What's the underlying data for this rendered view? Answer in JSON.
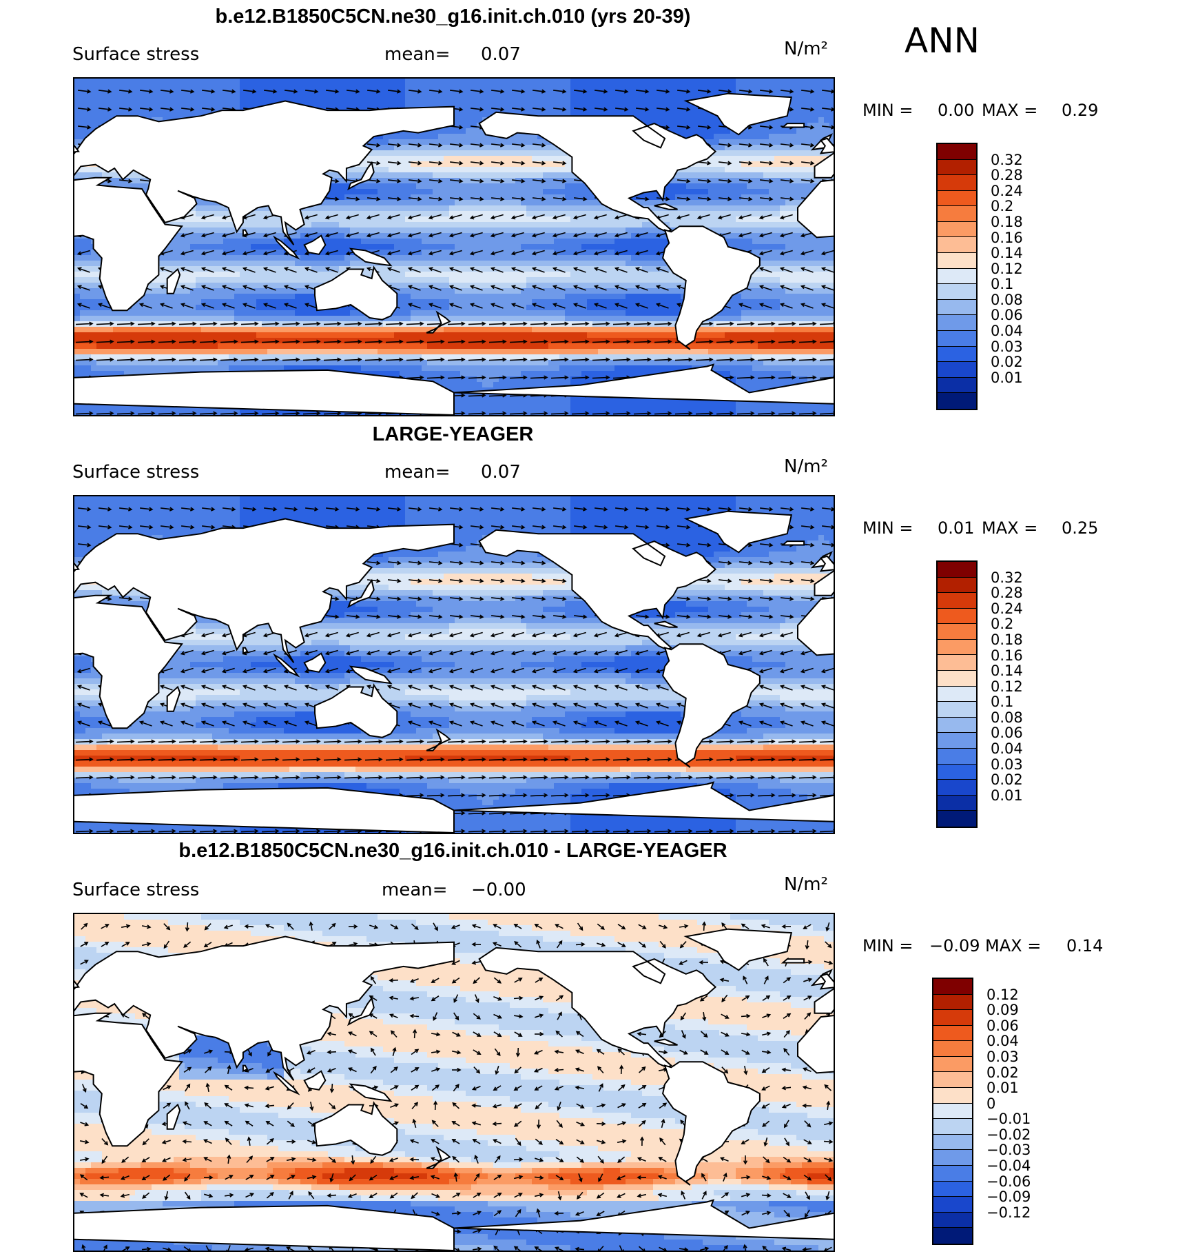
{
  "season": "ANN",
  "panels": [
    {
      "title": "b.e12.B1850C5CN.ne30_g16.init.ch.010 (yrs 20-39)",
      "variable": "Surface stress",
      "mean_label": "mean=",
      "mean_value": "0.07",
      "units": "N/m²",
      "min_label": "MIN =",
      "min_value": "0.00",
      "max_label": "MAX =",
      "max_value": "0.29",
      "colorbar": {
        "ticks": [
          "0.32",
          "0.28",
          "0.24",
          "0.2",
          "0.18",
          "0.16",
          "0.14",
          "0.12",
          "0.1",
          "0.08",
          "0.06",
          "0.04",
          "0.03",
          "0.02",
          "0.01"
        ],
        "colors": [
          "#7f0000",
          "#b22000",
          "#d63a0a",
          "#ee5a1e",
          "#f67c3e",
          "#fb9b64",
          "#fdbd95",
          "#fde0c8",
          "#dde9f7",
          "#bcd4f2",
          "#97b9ee",
          "#6f9ae9",
          "#4a7de6",
          "#2b62e2",
          "#1947cc",
          "#0b2fa6",
          "#001a78"
        ]
      },
      "scale": "abs"
    },
    {
      "title": "LARGE-YEAGER",
      "variable": "Surface stress",
      "mean_label": "mean=",
      "mean_value": "0.07",
      "units": "N/m²",
      "min_label": "MIN =",
      "min_value": "0.01",
      "max_label": "MAX =",
      "max_value": "0.25",
      "colorbar": {
        "ticks": [
          "0.32",
          "0.28",
          "0.24",
          "0.2",
          "0.18",
          "0.16",
          "0.14",
          "0.12",
          "0.1",
          "0.08",
          "0.06",
          "0.04",
          "0.03",
          "0.02",
          "0.01"
        ],
        "colors": [
          "#7f0000",
          "#b22000",
          "#d63a0a",
          "#ee5a1e",
          "#f67c3e",
          "#fb9b64",
          "#fdbd95",
          "#fde0c8",
          "#dde9f7",
          "#bcd4f2",
          "#97b9ee",
          "#6f9ae9",
          "#4a7de6",
          "#2b62e2",
          "#1947cc",
          "#0b2fa6",
          "#001a78"
        ]
      },
      "scale": "abs"
    },
    {
      "title": "b.e12.B1850C5CN.ne30_g16.init.ch.010 - LARGE-YEAGER",
      "variable": "Surface stress",
      "mean_label": "mean=",
      "mean_value": "−0.00",
      "units": "N/m²",
      "min_label": "MIN =",
      "min_value": "−0.09",
      "max_label": "MAX =",
      "max_value": "0.14",
      "colorbar": {
        "ticks": [
          "0.12",
          "0.09",
          "0.06",
          "0.04",
          "0.03",
          "0.02",
          "0.01",
          "0",
          "−0.01",
          "−0.02",
          "−0.03",
          "−0.04",
          "−0.06",
          "−0.09",
          "−0.12"
        ],
        "colors": [
          "#7f0000",
          "#b22000",
          "#d63a0a",
          "#ee5a1e",
          "#f67c3e",
          "#fb9b64",
          "#fdbd95",
          "#fde0c8",
          "#dde9f7",
          "#bcd4f2",
          "#97b9ee",
          "#6f9ae9",
          "#4a7de6",
          "#2b62e2",
          "#1947cc",
          "#0b2fa6",
          "#001a78"
        ]
      },
      "scale": "diff"
    }
  ]
}
